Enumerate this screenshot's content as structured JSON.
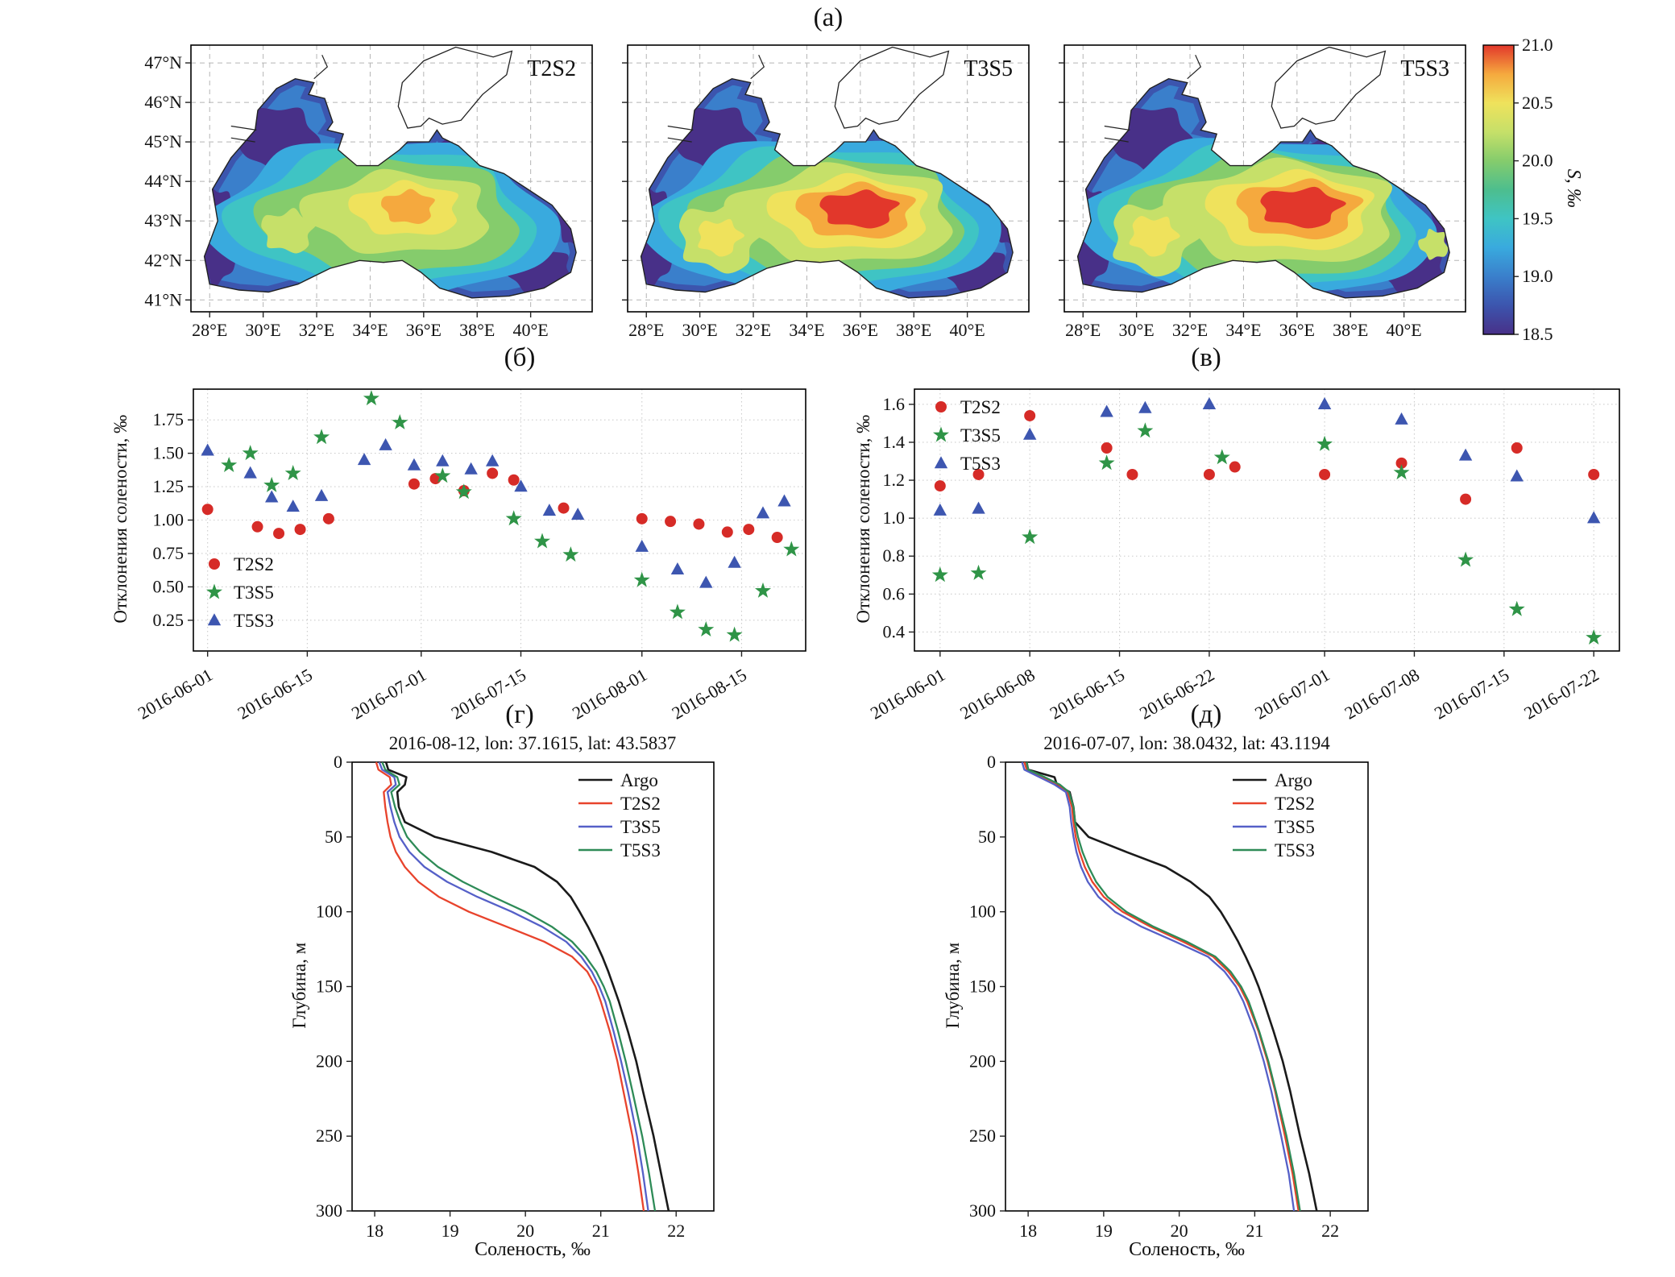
{
  "figure": {
    "panel_labels": {
      "a": "(а)",
      "b": "(б)",
      "v": "(в)",
      "g": "(г)",
      "d": "(д)"
    }
  },
  "maps": {
    "panels": [
      {
        "label": "T2S2"
      },
      {
        "label": "T3S5"
      },
      {
        "label": "T5S3"
      }
    ],
    "lat_ticks": [
      {
        "value": 47,
        "label": "47°N"
      },
      {
        "value": 46,
        "label": "46°N"
      },
      {
        "value": 45,
        "label": "45°N"
      },
      {
        "value": 44,
        "label": "44°N"
      },
      {
        "value": 43,
        "label": "43°N"
      },
      {
        "value": 42,
        "label": "42°N"
      },
      {
        "value": 41,
        "label": "41°N"
      }
    ],
    "lon_ticks": [
      {
        "value": 28,
        "label": "28°E"
      },
      {
        "value": 30,
        "label": "30°E"
      },
      {
        "value": 32,
        "label": "32°E"
      },
      {
        "value": 34,
        "label": "34°E"
      },
      {
        "value": 36,
        "label": "36°E"
      },
      {
        "value": 38,
        "label": "38°E"
      },
      {
        "value": 40,
        "label": "40°E"
      }
    ],
    "colorbar": {
      "label": "S, ‰",
      "min": 18.5,
      "max": 21.0,
      "tick_values": [
        21.0,
        20.5,
        20.0,
        19.5,
        19.0,
        18.5
      ],
      "tick_labels": [
        "21.0",
        "20.5",
        "20.0",
        "19.5",
        "19.0",
        "18.5"
      ],
      "colors_bottom_to_top": [
        "#483088",
        "#3c55ae",
        "#3a7fcb",
        "#39aade",
        "#3fc4c4",
        "#4dbe8e",
        "#85cc6c",
        "#c6e069",
        "#efe25c",
        "#f5a93e",
        "#e2372b"
      ]
    }
  },
  "chart_data": [
    {
      "id": "b",
      "type": "scatter",
      "ylabel": "Отклонения солености, ‰",
      "xlim": [
        "2016-05-30",
        "2016-08-24"
      ],
      "ylim": [
        0.02,
        1.98
      ],
      "x_ticks": [
        "2016-06-01",
        "2016-06-15",
        "2016-07-01",
        "2016-07-15",
        "2016-08-01",
        "2016-08-15"
      ],
      "y_ticks": [
        {
          "v": 0.25,
          "t": "0.25"
        },
        {
          "v": 0.5,
          "t": "0.50"
        },
        {
          "v": 0.75,
          "t": "0.75"
        },
        {
          "v": 1.0,
          "t": "1.00"
        },
        {
          "v": 1.25,
          "t": "1.25"
        },
        {
          "v": 1.5,
          "t": "1.50"
        },
        {
          "v": 1.75,
          "t": "1.75"
        }
      ],
      "series": [
        {
          "name": "T2S2",
          "marker": "circle",
          "color": "#d62b27",
          "points": [
            [
              "2016-06-01",
              1.08
            ],
            [
              "2016-06-08",
              0.95
            ],
            [
              "2016-06-11",
              0.9
            ],
            [
              "2016-06-14",
              0.93
            ],
            [
              "2016-06-18",
              1.01
            ],
            [
              "2016-06-30",
              1.27
            ],
            [
              "2016-07-03",
              1.31
            ],
            [
              "2016-07-07",
              1.22
            ],
            [
              "2016-07-11",
              1.35
            ],
            [
              "2016-07-14",
              1.3
            ],
            [
              "2016-07-21",
              1.09
            ],
            [
              "2016-08-01",
              1.01
            ],
            [
              "2016-08-05",
              0.99
            ],
            [
              "2016-08-09",
              0.97
            ],
            [
              "2016-08-13",
              0.91
            ],
            [
              "2016-08-16",
              0.93
            ],
            [
              "2016-08-20",
              0.87
            ]
          ]
        },
        {
          "name": "T3S5",
          "marker": "star",
          "color": "#2f9447",
          "points": [
            [
              "2016-06-04",
              1.41
            ],
            [
              "2016-06-07",
              1.5
            ],
            [
              "2016-06-10",
              1.26
            ],
            [
              "2016-06-13",
              1.35
            ],
            [
              "2016-06-17",
              1.62
            ],
            [
              "2016-06-24",
              1.91
            ],
            [
              "2016-06-28",
              1.73
            ],
            [
              "2016-07-04",
              1.33
            ],
            [
              "2016-07-07",
              1.21
            ],
            [
              "2016-07-14",
              1.01
            ],
            [
              "2016-07-18",
              0.84
            ],
            [
              "2016-07-22",
              0.74
            ],
            [
              "2016-08-01",
              0.55
            ],
            [
              "2016-08-06",
              0.31
            ],
            [
              "2016-08-10",
              0.18
            ],
            [
              "2016-08-14",
              0.14
            ],
            [
              "2016-08-18",
              0.47
            ],
            [
              "2016-08-22",
              0.78
            ]
          ]
        },
        {
          "name": "T5S3",
          "marker": "triangle",
          "color": "#3d56b0",
          "points": [
            [
              "2016-06-01",
              1.52
            ],
            [
              "2016-06-07",
              1.35
            ],
            [
              "2016-06-10",
              1.17
            ],
            [
              "2016-06-13",
              1.1
            ],
            [
              "2016-06-17",
              1.18
            ],
            [
              "2016-06-23",
              1.45
            ],
            [
              "2016-06-26",
              1.56
            ],
            [
              "2016-06-30",
              1.41
            ],
            [
              "2016-07-04",
              1.44
            ],
            [
              "2016-07-08",
              1.38
            ],
            [
              "2016-07-11",
              1.44
            ],
            [
              "2016-07-15",
              1.25
            ],
            [
              "2016-07-19",
              1.07
            ],
            [
              "2016-07-23",
              1.04
            ],
            [
              "2016-08-01",
              0.8
            ],
            [
              "2016-08-06",
              0.63
            ],
            [
              "2016-08-10",
              0.53
            ],
            [
              "2016-08-14",
              0.68
            ],
            [
              "2016-08-18",
              1.05
            ],
            [
              "2016-08-21",
              1.14
            ]
          ]
        }
      ]
    },
    {
      "id": "v",
      "type": "scatter",
      "ylabel": "Отклонения солености, ‰",
      "xlim": [
        "2016-05-30",
        "2016-07-24"
      ],
      "ylim": [
        0.3,
        1.68
      ],
      "x_ticks": [
        "2016-06-01",
        "2016-06-08",
        "2016-06-15",
        "2016-06-22",
        "2016-07-01",
        "2016-07-08",
        "2016-07-15",
        "2016-07-22"
      ],
      "y_ticks": [
        {
          "v": 0.4,
          "t": "0.4"
        },
        {
          "v": 0.6,
          "t": "0.6"
        },
        {
          "v": 0.8,
          "t": "0.8"
        },
        {
          "v": 1.0,
          "t": "1.0"
        },
        {
          "v": 1.2,
          "t": "1.2"
        },
        {
          "v": 1.4,
          "t": "1.4"
        },
        {
          "v": 1.6,
          "t": "1.6"
        }
      ],
      "series": [
        {
          "name": "T2S2",
          "marker": "circle",
          "color": "#d62b27",
          "points": [
            [
              "2016-06-01",
              1.17
            ],
            [
              "2016-06-04",
              1.23
            ],
            [
              "2016-06-08",
              1.54
            ],
            [
              "2016-06-14",
              1.37
            ],
            [
              "2016-06-16",
              1.23
            ],
            [
              "2016-06-22",
              1.23
            ],
            [
              "2016-06-24",
              1.27
            ],
            [
              "2016-07-01",
              1.23
            ],
            [
              "2016-07-07",
              1.29
            ],
            [
              "2016-07-12",
              1.1
            ],
            [
              "2016-07-16",
              1.37
            ],
            [
              "2016-07-22",
              1.23
            ]
          ]
        },
        {
          "name": "T3S5",
          "marker": "star",
          "color": "#2f9447",
          "points": [
            [
              "2016-06-01",
              0.7
            ],
            [
              "2016-06-04",
              0.71
            ],
            [
              "2016-06-08",
              0.9
            ],
            [
              "2016-06-14",
              1.29
            ],
            [
              "2016-06-17",
              1.46
            ],
            [
              "2016-06-23",
              1.32
            ],
            [
              "2016-07-01",
              1.39
            ],
            [
              "2016-07-07",
              1.24
            ],
            [
              "2016-07-12",
              0.78
            ],
            [
              "2016-07-16",
              0.52
            ],
            [
              "2016-07-22",
              0.37
            ]
          ]
        },
        {
          "name": "T5S3",
          "marker": "triangle",
          "color": "#3d56b0",
          "points": [
            [
              "2016-06-01",
              1.04
            ],
            [
              "2016-06-04",
              1.05
            ],
            [
              "2016-06-08",
              1.44
            ],
            [
              "2016-06-14",
              1.56
            ],
            [
              "2016-06-17",
              1.58
            ],
            [
              "2016-06-22",
              1.6
            ],
            [
              "2016-07-01",
              1.6
            ],
            [
              "2016-07-07",
              1.52
            ],
            [
              "2016-07-12",
              1.33
            ],
            [
              "2016-07-16",
              1.22
            ],
            [
              "2016-07-22",
              1.0
            ]
          ]
        }
      ]
    },
    {
      "id": "g",
      "type": "line",
      "title": "2016-08-12, lon: 37.1615, lat: 43.5837",
      "xlabel": "Соленость, ‰",
      "ylabel": "Глубина, м",
      "xlim": [
        17.7,
        22.5
      ],
      "ylim": [
        0,
        300
      ],
      "x_ticks": [
        {
          "v": 18,
          "t": "18"
        },
        {
          "v": 19,
          "t": "19"
        },
        {
          "v": 20,
          "t": "20"
        },
        {
          "v": 21,
          "t": "21"
        },
        {
          "v": 22,
          "t": "22"
        }
      ],
      "y_ticks": [
        {
          "v": 0,
          "t": "0"
        },
        {
          "v": 50,
          "t": "50"
        },
        {
          "v": 100,
          "t": "100"
        },
        {
          "v": 150,
          "t": "150"
        },
        {
          "v": 200,
          "t": "200"
        },
        {
          "v": 250,
          "t": "250"
        },
        {
          "v": 300,
          "t": "300"
        }
      ],
      "depths": [
        0,
        5,
        10,
        15,
        20,
        30,
        40,
        50,
        60,
        70,
        80,
        90,
        100,
        110,
        120,
        130,
        140,
        150,
        160,
        180,
        200,
        220,
        250,
        275,
        300
      ],
      "series": [
        {
          "name": "Argo",
          "color": "#1a1a1a",
          "salinity": [
            18.15,
            18.18,
            18.42,
            18.4,
            18.3,
            18.32,
            18.4,
            18.8,
            19.55,
            20.12,
            20.42,
            20.6,
            20.72,
            20.83,
            20.93,
            21.02,
            21.1,
            21.17,
            21.24,
            21.36,
            21.47,
            21.56,
            21.7,
            21.8,
            21.9
          ]
        },
        {
          "name": "T2S2",
          "color": "#e8432c",
          "salinity": [
            18.02,
            18.05,
            18.2,
            18.22,
            18.12,
            18.14,
            18.17,
            18.21,
            18.28,
            18.4,
            18.58,
            18.85,
            19.25,
            19.75,
            20.25,
            20.62,
            20.82,
            20.93,
            21.0,
            21.12,
            21.22,
            21.3,
            21.42,
            21.5,
            21.57
          ]
        },
        {
          "name": "T3S5",
          "color": "#5560c8",
          "salinity": [
            18.06,
            18.1,
            18.26,
            18.28,
            18.17,
            18.21,
            18.26,
            18.33,
            18.46,
            18.66,
            18.96,
            19.36,
            19.82,
            20.22,
            20.54,
            20.74,
            20.88,
            20.98,
            21.06,
            21.17,
            21.27,
            21.36,
            21.48,
            21.56,
            21.63
          ]
        },
        {
          "name": "T5S3",
          "color": "#2e8b57",
          "salinity": [
            18.1,
            18.14,
            18.3,
            18.33,
            18.22,
            18.27,
            18.34,
            18.43,
            18.6,
            18.84,
            19.17,
            19.57,
            20.0,
            20.35,
            20.62,
            20.8,
            20.94,
            21.04,
            21.12,
            21.23,
            21.33,
            21.42,
            21.55,
            21.64,
            21.72
          ]
        }
      ]
    },
    {
      "id": "d",
      "type": "line",
      "title": "2016-07-07, lon: 38.0432, lat: 43.1194",
      "xlabel": "Соленость, ‰",
      "ylabel": "Глубина, м",
      "xlim": [
        17.7,
        22.5
      ],
      "ylim": [
        0,
        300
      ],
      "x_ticks": [
        {
          "v": 18,
          "t": "18"
        },
        {
          "v": 19,
          "t": "19"
        },
        {
          "v": 20,
          "t": "20"
        },
        {
          "v": 21,
          "t": "21"
        },
        {
          "v": 22,
          "t": "22"
        }
      ],
      "y_ticks": [
        {
          "v": 0,
          "t": "0"
        },
        {
          "v": 50,
          "t": "50"
        },
        {
          "v": 100,
          "t": "100"
        },
        {
          "v": 150,
          "t": "150"
        },
        {
          "v": 200,
          "t": "200"
        },
        {
          "v": 250,
          "t": "250"
        },
        {
          "v": 300,
          "t": "300"
        }
      ],
      "depths": [
        0,
        5,
        10,
        15,
        20,
        30,
        40,
        50,
        60,
        70,
        80,
        90,
        100,
        110,
        120,
        130,
        140,
        150,
        160,
        180,
        200,
        220,
        250,
        275,
        300
      ],
      "series": [
        {
          "name": "Argo",
          "color": "#1a1a1a",
          "salinity": [
            17.98,
            18.0,
            18.35,
            18.38,
            18.55,
            18.6,
            18.62,
            18.8,
            19.3,
            19.82,
            20.15,
            20.4,
            20.55,
            20.67,
            20.78,
            20.88,
            20.97,
            21.05,
            21.12,
            21.25,
            21.37,
            21.47,
            21.6,
            21.72,
            21.82
          ]
        },
        {
          "name": "T2S2",
          "color": "#e8432c",
          "salinity": [
            17.95,
            17.98,
            18.2,
            18.4,
            18.52,
            18.58,
            18.6,
            18.63,
            18.68,
            18.75,
            18.85,
            19.0,
            19.25,
            19.62,
            20.05,
            20.45,
            20.65,
            20.8,
            20.9,
            21.05,
            21.17,
            21.27,
            21.4,
            21.5,
            21.58
          ]
        },
        {
          "name": "T3S5",
          "color": "#5560c8",
          "salinity": [
            17.92,
            17.95,
            18.15,
            18.35,
            18.5,
            18.55,
            18.57,
            18.6,
            18.64,
            18.7,
            18.79,
            18.93,
            19.15,
            19.5,
            19.95,
            20.38,
            20.6,
            20.75,
            20.85,
            21.0,
            21.12,
            21.22,
            21.35,
            21.45,
            21.52
          ]
        },
        {
          "name": "T5S3",
          "color": "#2e8b57",
          "salinity": [
            17.98,
            18.0,
            18.22,
            18.42,
            18.54,
            18.6,
            18.62,
            18.66,
            18.72,
            18.8,
            18.9,
            19.05,
            19.3,
            19.66,
            20.1,
            20.48,
            20.68,
            20.82,
            20.92,
            21.06,
            21.18,
            21.28,
            21.42,
            21.52,
            21.6
          ]
        }
      ]
    }
  ]
}
